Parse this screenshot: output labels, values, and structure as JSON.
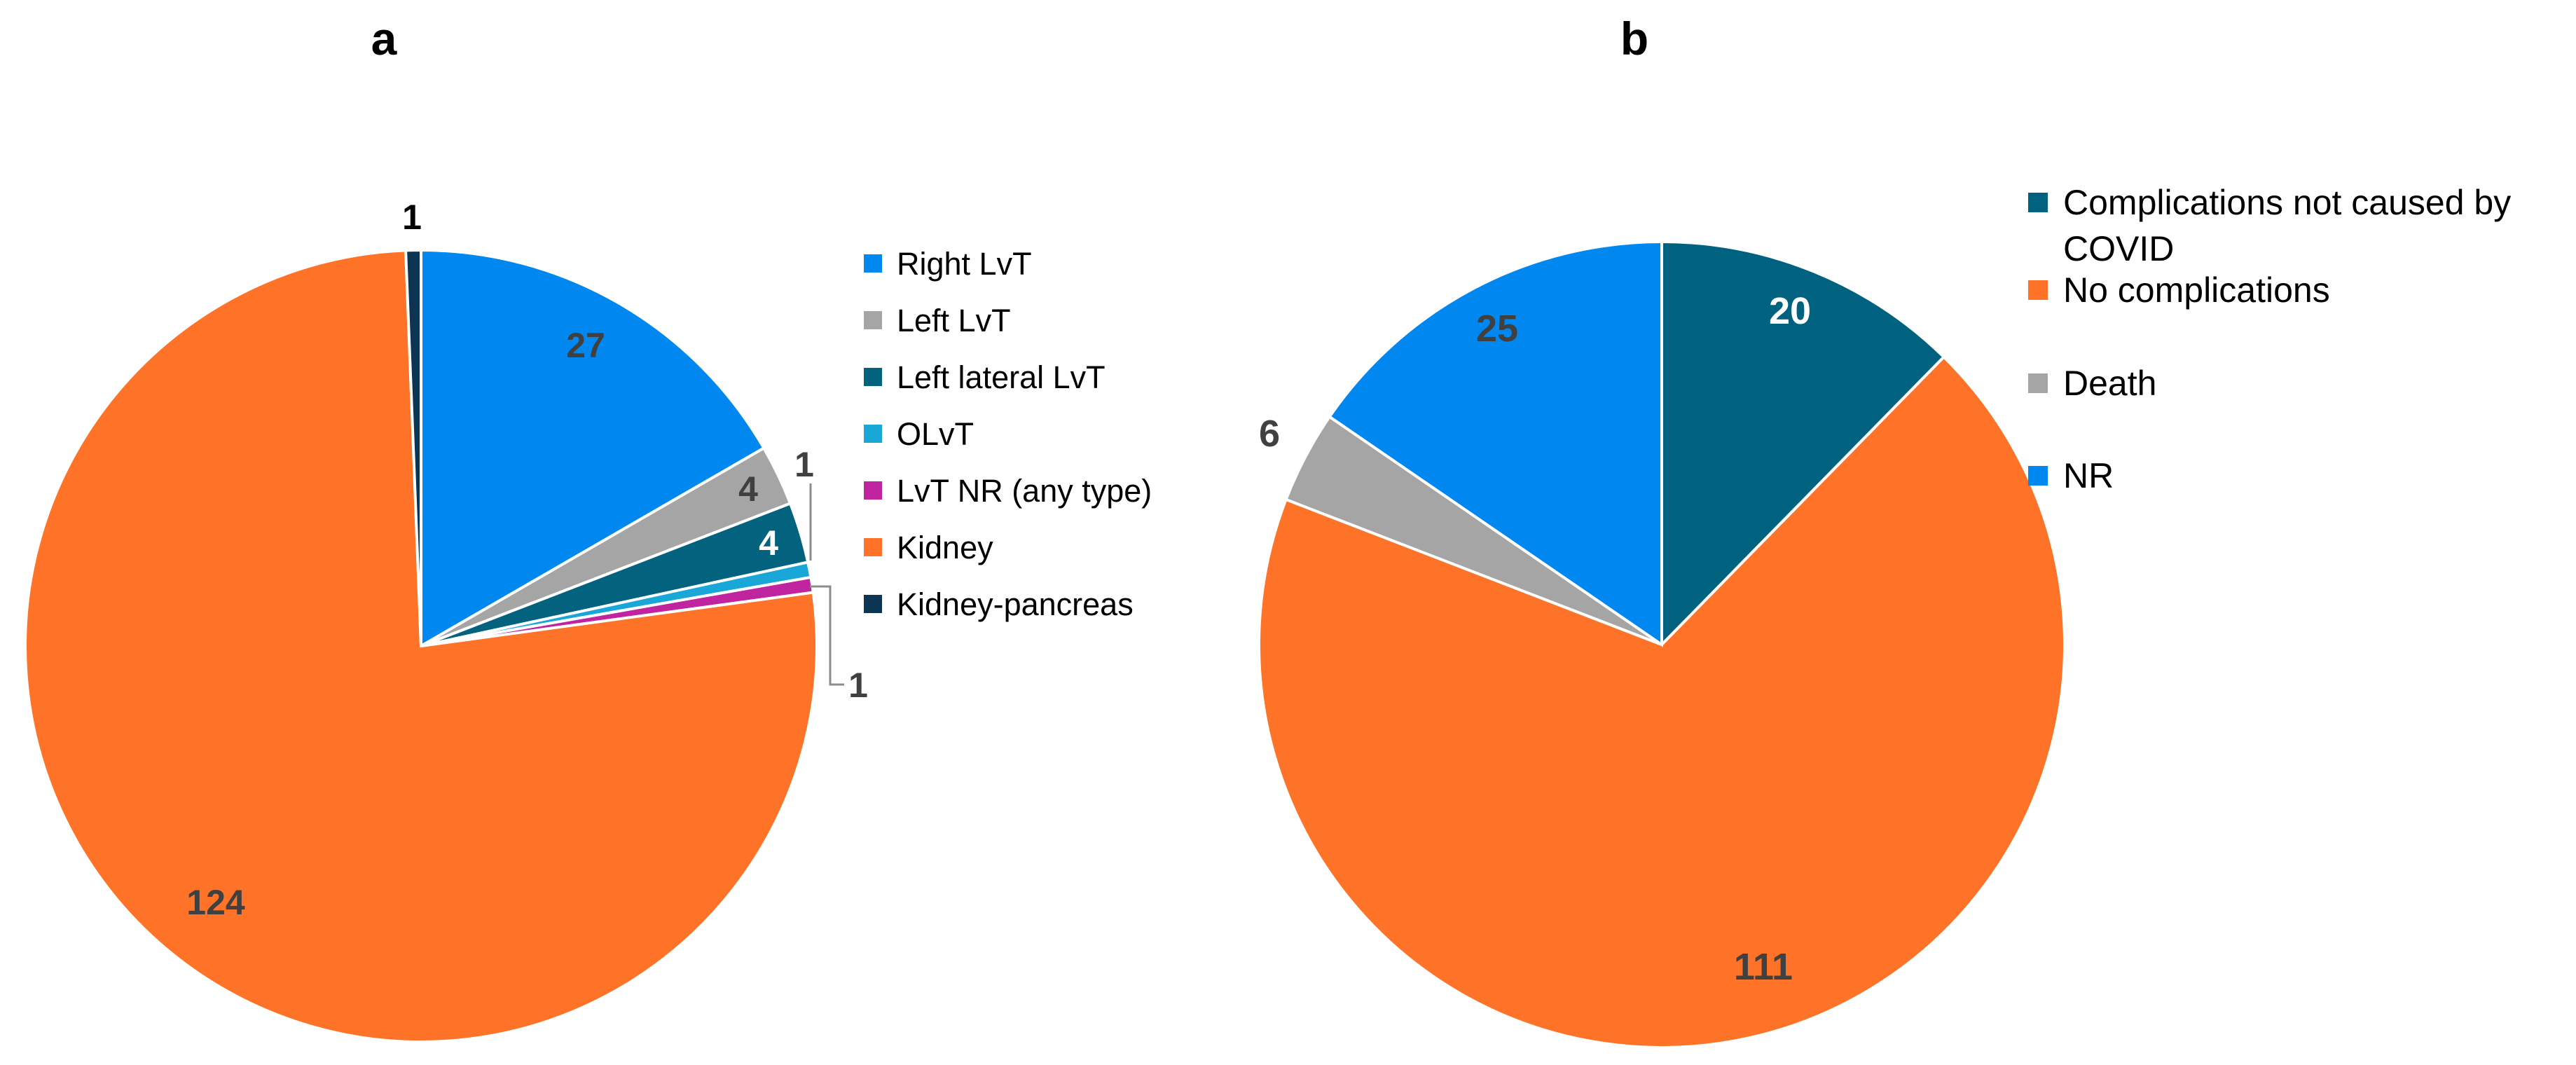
{
  "chart_data": [
    {
      "type": "pie",
      "title": "a",
      "categories": [
        "Right LvT",
        "Left LvT",
        "Left lateral LvT",
        "OLvT",
        "LvT NR (any type)",
        "Kidney",
        "Kidney-pancreas"
      ],
      "values": [
        27,
        4,
        4,
        1,
        1,
        124,
        1
      ],
      "colors": [
        "#0088F0",
        "#A5A5A5",
        "#03627E",
        "#19A7D8",
        "#C0249E",
        "#FF7328",
        "#0B3552"
      ],
      "data_labels": [
        "27",
        "4",
        "4",
        "1",
        "1",
        "124",
        "1"
      ],
      "legend_position": "right"
    },
    {
      "type": "pie",
      "title": "b",
      "categories": [
        "Complications not caused by COVID",
        "No complications",
        "Death",
        "NR"
      ],
      "values": [
        20,
        111,
        6,
        25
      ],
      "colors": [
        "#00627F",
        "#FF7328",
        "#A5A5A5",
        "#0088F0"
      ],
      "data_labels": [
        "20",
        "111",
        "6",
        "25"
      ],
      "legend_position": "right"
    }
  ],
  "panel_a": {
    "letter": "a",
    "legend": [
      "Right LvT",
      "Left LvT",
      "Left lateral LvT",
      "OLvT",
      "LvT NR (any type)",
      "Kidney",
      "Kidney-pancreas"
    ]
  },
  "panel_b": {
    "letter": "b",
    "legend": [
      {
        "line1": "Complications not caused by",
        "line2": "COVID"
      },
      {
        "line1": "No complications"
      },
      {
        "line1": "Death"
      },
      {
        "line1": "NR"
      }
    ]
  }
}
